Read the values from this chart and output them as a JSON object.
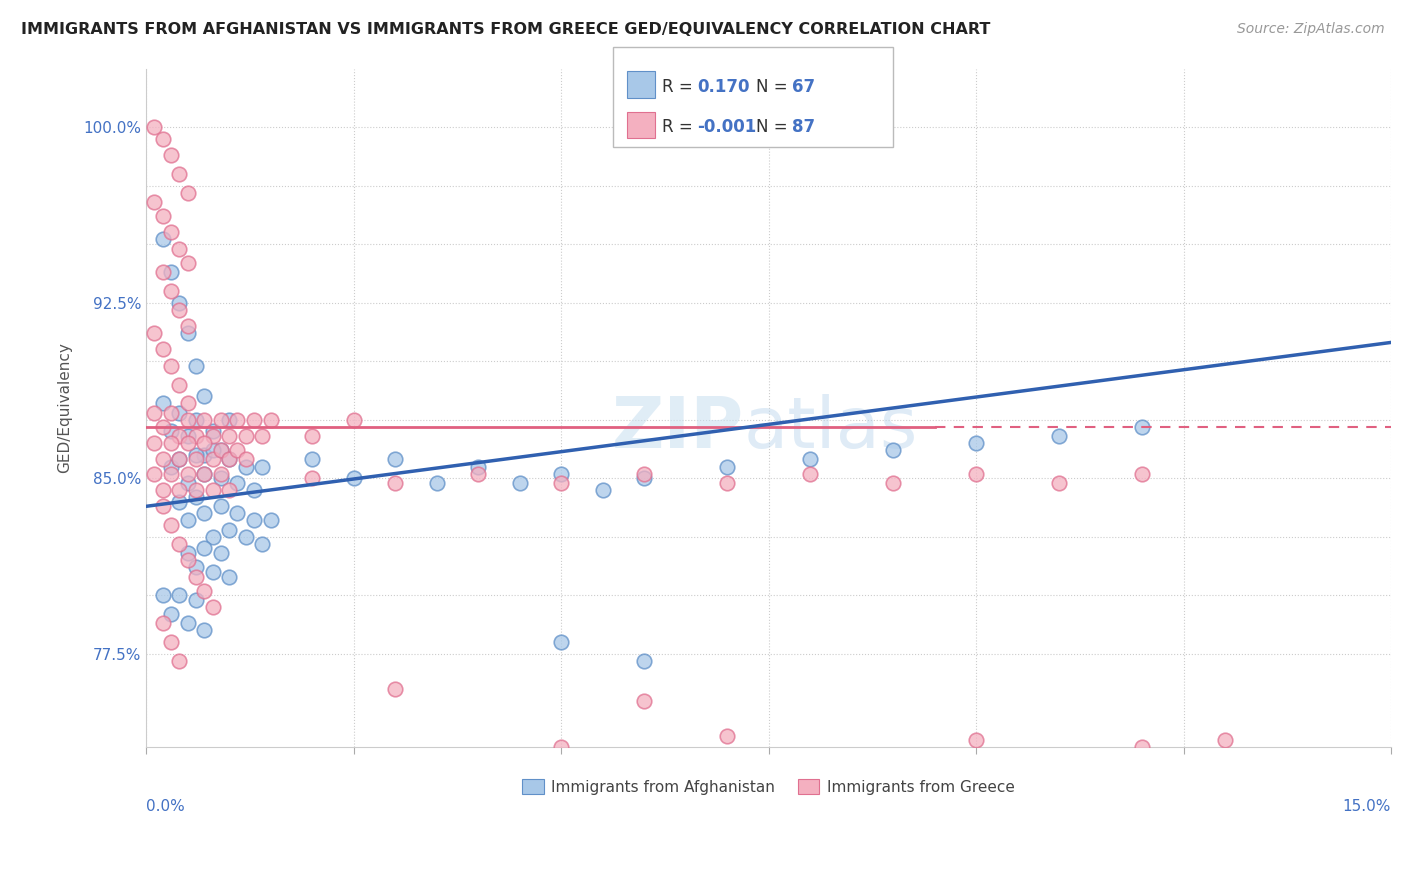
{
  "title": "IMMIGRANTS FROM AFGHANISTAN VS IMMIGRANTS FROM GREECE GED/EQUIVALENCY CORRELATION CHART",
  "source": "Source: ZipAtlas.com",
  "ylabel": "GED/Equivalency",
  "xmin": 0.0,
  "xmax": 0.15,
  "ymin": 0.735,
  "ymax": 1.025,
  "afghanistan_R": 0.17,
  "afghanistan_N": 67,
  "greece_R": -0.001,
  "greece_N": 87,
  "afghanistan_color": "#a8c8e8",
  "greece_color": "#f4b0c0",
  "afghanistan_edge": "#6090c8",
  "greece_edge": "#e07090",
  "afghanistan_line_color": "#3060b0",
  "greece_line_color": "#e06080",
  "afg_line_y0": 0.838,
  "afg_line_y1": 0.908,
  "grc_line_y": 0.872,
  "afghanistan_scatter": [
    [
      0.002,
      0.952
    ],
    [
      0.003,
      0.938
    ],
    [
      0.004,
      0.925
    ],
    [
      0.005,
      0.912
    ],
    [
      0.006,
      0.898
    ],
    [
      0.007,
      0.885
    ],
    [
      0.002,
      0.882
    ],
    [
      0.003,
      0.87
    ],
    [
      0.004,
      0.878
    ],
    [
      0.005,
      0.868
    ],
    [
      0.006,
      0.875
    ],
    [
      0.007,
      0.86
    ],
    [
      0.008,
      0.87
    ],
    [
      0.009,
      0.862
    ],
    [
      0.01,
      0.875
    ],
    [
      0.003,
      0.855
    ],
    [
      0.004,
      0.858
    ],
    [
      0.005,
      0.848
    ],
    [
      0.006,
      0.86
    ],
    [
      0.007,
      0.852
    ],
    [
      0.008,
      0.862
    ],
    [
      0.009,
      0.85
    ],
    [
      0.01,
      0.858
    ],
    [
      0.011,
      0.848
    ],
    [
      0.012,
      0.855
    ],
    [
      0.013,
      0.845
    ],
    [
      0.014,
      0.855
    ],
    [
      0.004,
      0.84
    ],
    [
      0.005,
      0.832
    ],
    [
      0.006,
      0.842
    ],
    [
      0.007,
      0.835
    ],
    [
      0.008,
      0.825
    ],
    [
      0.009,
      0.838
    ],
    [
      0.01,
      0.828
    ],
    [
      0.011,
      0.835
    ],
    [
      0.012,
      0.825
    ],
    [
      0.013,
      0.832
    ],
    [
      0.014,
      0.822
    ],
    [
      0.015,
      0.832
    ],
    [
      0.005,
      0.818
    ],
    [
      0.006,
      0.812
    ],
    [
      0.007,
      0.82
    ],
    [
      0.008,
      0.81
    ],
    [
      0.009,
      0.818
    ],
    [
      0.01,
      0.808
    ],
    [
      0.02,
      0.858
    ],
    [
      0.025,
      0.85
    ],
    [
      0.03,
      0.858
    ],
    [
      0.035,
      0.848
    ],
    [
      0.04,
      0.855
    ],
    [
      0.045,
      0.848
    ],
    [
      0.05,
      0.852
    ],
    [
      0.055,
      0.845
    ],
    [
      0.06,
      0.85
    ],
    [
      0.07,
      0.855
    ],
    [
      0.08,
      0.858
    ],
    [
      0.09,
      0.862
    ],
    [
      0.1,
      0.865
    ],
    [
      0.11,
      0.868
    ],
    [
      0.12,
      0.872
    ],
    [
      0.002,
      0.8
    ],
    [
      0.003,
      0.792
    ],
    [
      0.004,
      0.8
    ],
    [
      0.005,
      0.788
    ],
    [
      0.006,
      0.798
    ],
    [
      0.007,
      0.785
    ],
    [
      0.05,
      0.78
    ],
    [
      0.06,
      0.772
    ]
  ],
  "greece_scatter": [
    [
      0.001,
      1.0
    ],
    [
      0.002,
      0.995
    ],
    [
      0.003,
      0.988
    ],
    [
      0.004,
      0.98
    ],
    [
      0.005,
      0.972
    ],
    [
      0.001,
      0.968
    ],
    [
      0.002,
      0.962
    ],
    [
      0.003,
      0.955
    ],
    [
      0.004,
      0.948
    ],
    [
      0.005,
      0.942
    ],
    [
      0.002,
      0.938
    ],
    [
      0.003,
      0.93
    ],
    [
      0.004,
      0.922
    ],
    [
      0.005,
      0.915
    ],
    [
      0.001,
      0.912
    ],
    [
      0.002,
      0.905
    ],
    [
      0.003,
      0.898
    ],
    [
      0.004,
      0.89
    ],
    [
      0.005,
      0.882
    ],
    [
      0.001,
      0.878
    ],
    [
      0.002,
      0.872
    ],
    [
      0.003,
      0.878
    ],
    [
      0.004,
      0.868
    ],
    [
      0.005,
      0.875
    ],
    [
      0.006,
      0.868
    ],
    [
      0.007,
      0.875
    ],
    [
      0.008,
      0.868
    ],
    [
      0.009,
      0.875
    ],
    [
      0.01,
      0.868
    ],
    [
      0.011,
      0.875
    ],
    [
      0.012,
      0.868
    ],
    [
      0.013,
      0.875
    ],
    [
      0.014,
      0.868
    ],
    [
      0.015,
      0.875
    ],
    [
      0.02,
      0.868
    ],
    [
      0.025,
      0.875
    ],
    [
      0.001,
      0.865
    ],
    [
      0.002,
      0.858
    ],
    [
      0.003,
      0.865
    ],
    [
      0.004,
      0.858
    ],
    [
      0.005,
      0.865
    ],
    [
      0.006,
      0.858
    ],
    [
      0.007,
      0.865
    ],
    [
      0.008,
      0.858
    ],
    [
      0.009,
      0.862
    ],
    [
      0.01,
      0.858
    ],
    [
      0.011,
      0.862
    ],
    [
      0.012,
      0.858
    ],
    [
      0.001,
      0.852
    ],
    [
      0.002,
      0.845
    ],
    [
      0.003,
      0.852
    ],
    [
      0.004,
      0.845
    ],
    [
      0.005,
      0.852
    ],
    [
      0.006,
      0.845
    ],
    [
      0.007,
      0.852
    ],
    [
      0.008,
      0.845
    ],
    [
      0.009,
      0.852
    ],
    [
      0.01,
      0.845
    ],
    [
      0.02,
      0.85
    ],
    [
      0.03,
      0.848
    ],
    [
      0.04,
      0.852
    ],
    [
      0.05,
      0.848
    ],
    [
      0.06,
      0.852
    ],
    [
      0.07,
      0.848
    ],
    [
      0.08,
      0.852
    ],
    [
      0.09,
      0.848
    ],
    [
      0.1,
      0.852
    ],
    [
      0.11,
      0.848
    ],
    [
      0.12,
      0.852
    ],
    [
      0.002,
      0.838
    ],
    [
      0.003,
      0.83
    ],
    [
      0.004,
      0.822
    ],
    [
      0.005,
      0.815
    ],
    [
      0.006,
      0.808
    ],
    [
      0.007,
      0.802
    ],
    [
      0.008,
      0.795
    ],
    [
      0.002,
      0.788
    ],
    [
      0.003,
      0.78
    ],
    [
      0.004,
      0.772
    ],
    [
      0.03,
      0.76
    ],
    [
      0.06,
      0.755
    ],
    [
      0.05,
      0.735
    ],
    [
      0.07,
      0.74
    ],
    [
      0.1,
      0.738
    ],
    [
      0.12,
      0.735
    ],
    [
      0.13,
      0.738
    ]
  ],
  "watermark_zip": "ZIP",
  "watermark_atlas": "atlas",
  "ytick_vals": [
    0.775,
    0.8,
    0.825,
    0.85,
    0.875,
    0.9,
    0.925,
    0.95,
    0.975,
    1.0
  ],
  "ytick_labels": [
    "77.5%",
    "",
    "",
    "85.0%",
    "",
    "",
    "92.5%",
    "",
    "",
    "100.0%"
  ]
}
